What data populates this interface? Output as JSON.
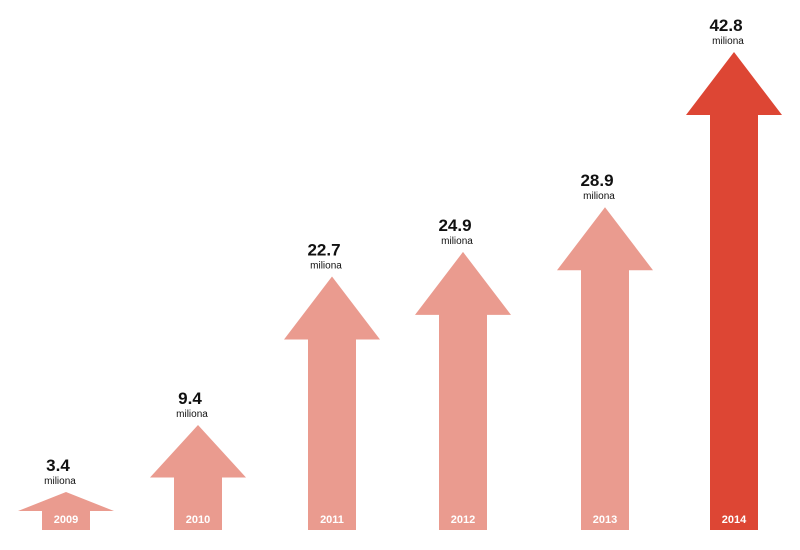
{
  "chart_data": {
    "type": "bar",
    "categories": [
      "2009",
      "2010",
      "2011",
      "2012",
      "2013",
      "2014"
    ],
    "values": [
      3.4,
      9.4,
      22.7,
      24.9,
      28.9,
      42.8
    ],
    "value_labels": [
      "3.4",
      "9.4",
      "22.7",
      "24.9",
      "28.9",
      "42.8"
    ],
    "unit_label": "miliona",
    "title": "",
    "xlabel": "",
    "ylabel": "",
    "grid": false,
    "colors": {
      "default": "#ea9b8f",
      "highlight": "#dd4634",
      "highlight_index": 5
    }
  }
}
